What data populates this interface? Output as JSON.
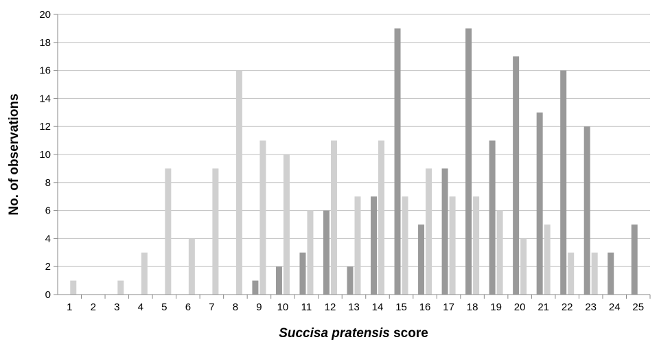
{
  "chart_data": {
    "type": "bar",
    "xlabel_italic": "Succisa pratensis",
    "xlabel_rest": " score",
    "ylabel": "No. of observations",
    "ylim": [
      0,
      20
    ],
    "yticks": [
      "0",
      "2",
      "4",
      "6",
      "8",
      "10",
      "12",
      "14",
      "16",
      "18",
      "20"
    ],
    "grid": "horizontal",
    "categories": [
      "1",
      "2",
      "3",
      "4",
      "5",
      "6",
      "7",
      "8",
      "9",
      "10",
      "11",
      "12",
      "13",
      "14",
      "15",
      "16",
      "17",
      "18",
      "19",
      "20",
      "21",
      "22",
      "23",
      "24",
      "25"
    ],
    "series": [
      {
        "color": "#999999",
        "values": [
          0,
          0,
          0,
          0,
          0,
          0,
          0,
          0,
          1,
          2,
          3,
          6,
          2,
          7,
          19,
          5,
          9,
          19,
          11,
          17,
          13,
          16,
          12,
          3,
          5
        ]
      },
      {
        "color": "#d0d0d0",
        "values": [
          1,
          0,
          1,
          3,
          9,
          4,
          9,
          16,
          11,
          10,
          6,
          11,
          7,
          11,
          7,
          9,
          7,
          7,
          6,
          4,
          5,
          3,
          3,
          0,
          0
        ]
      }
    ]
  }
}
